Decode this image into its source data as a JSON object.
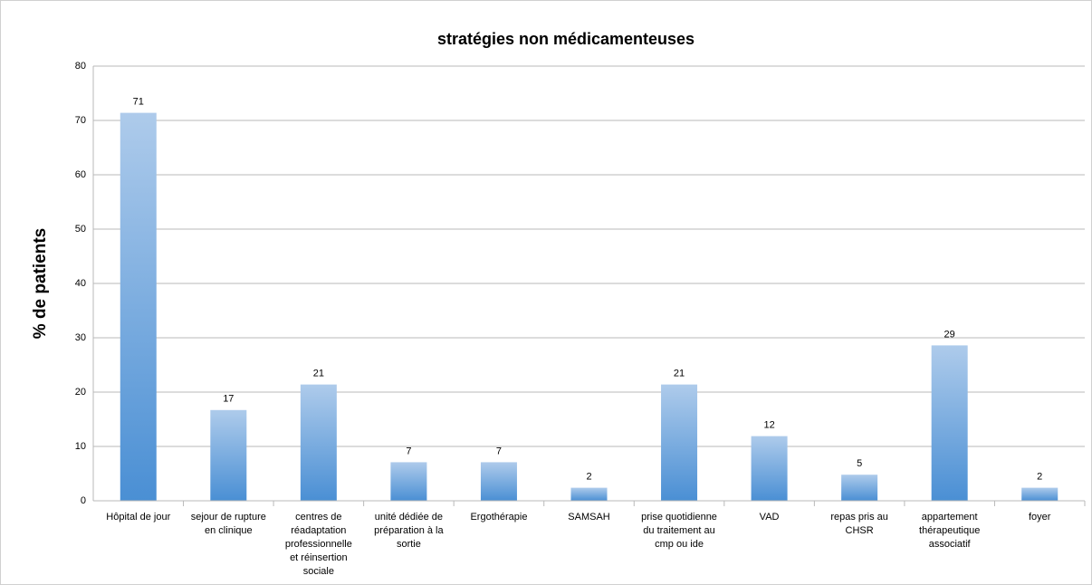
{
  "chart_data": {
    "type": "bar",
    "title": "stratégies non médicamenteuses",
    "y_label": "% de patients",
    "categories": [
      "Hôpital de jour",
      "sejour de rupture en clinique",
      "centres de réadaptation professionnelle et réinsertion sociale",
      "unité dédiée de préparation à la sortie",
      "Ergothérapie",
      "SAMSAH",
      "prise quotidienne du traitement au cmp ou ide",
      "VAD",
      "repas pris au CHSR",
      "appartement thérapeutique associatif",
      "foyer"
    ],
    "values": [
      71.4,
      16.7,
      21.4,
      7.1,
      7.1,
      2.4,
      21.4,
      11.9,
      4.8,
      28.6,
      2.4
    ],
    "value_labels": [
      "71",
      "17",
      "21",
      "7",
      "7",
      "2",
      "21",
      "12",
      "5",
      "29",
      "2"
    ],
    "color": "#4a8fd4",
    "ylim": [
      0,
      80
    ],
    "yticks": [
      0,
      10,
      20,
      30,
      40,
      50,
      60,
      70,
      80
    ],
    "grid": true
  }
}
